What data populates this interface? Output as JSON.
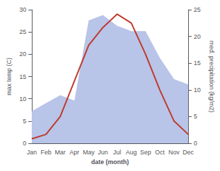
{
  "chart_data": {
    "type": "line",
    "xlabel": "date (month)",
    "ylabel": "max temp (C)",
    "y2label": "med. precipitation (kg/m2)",
    "categories": [
      "Jan",
      "Feb",
      "Mar",
      "Apr",
      "May",
      "Jun",
      "Jul",
      "Aug",
      "Sep",
      "Oct",
      "Nov",
      "Dec"
    ],
    "series": [
      {
        "type": "area",
        "color": "#b8c4e8",
        "axis": "y2",
        "values": [
          6,
          7.5,
          9,
          8,
          23,
          24,
          22,
          21,
          21,
          16,
          12,
          11
        ]
      },
      {
        "type": "line",
        "color": "#c0392b",
        "values": [
          1,
          2,
          6,
          14,
          22,
          26,
          29,
          27,
          20,
          12,
          5,
          2
        ]
      }
    ],
    "ylim": [
      0,
      30
    ],
    "yticks": [
      0,
      5,
      10,
      15,
      20,
      25,
      30
    ],
    "y2lim": [
      0,
      25
    ],
    "y2ticks": [
      0,
      5,
      10,
      15,
      20,
      25
    ],
    "grid": false
  }
}
